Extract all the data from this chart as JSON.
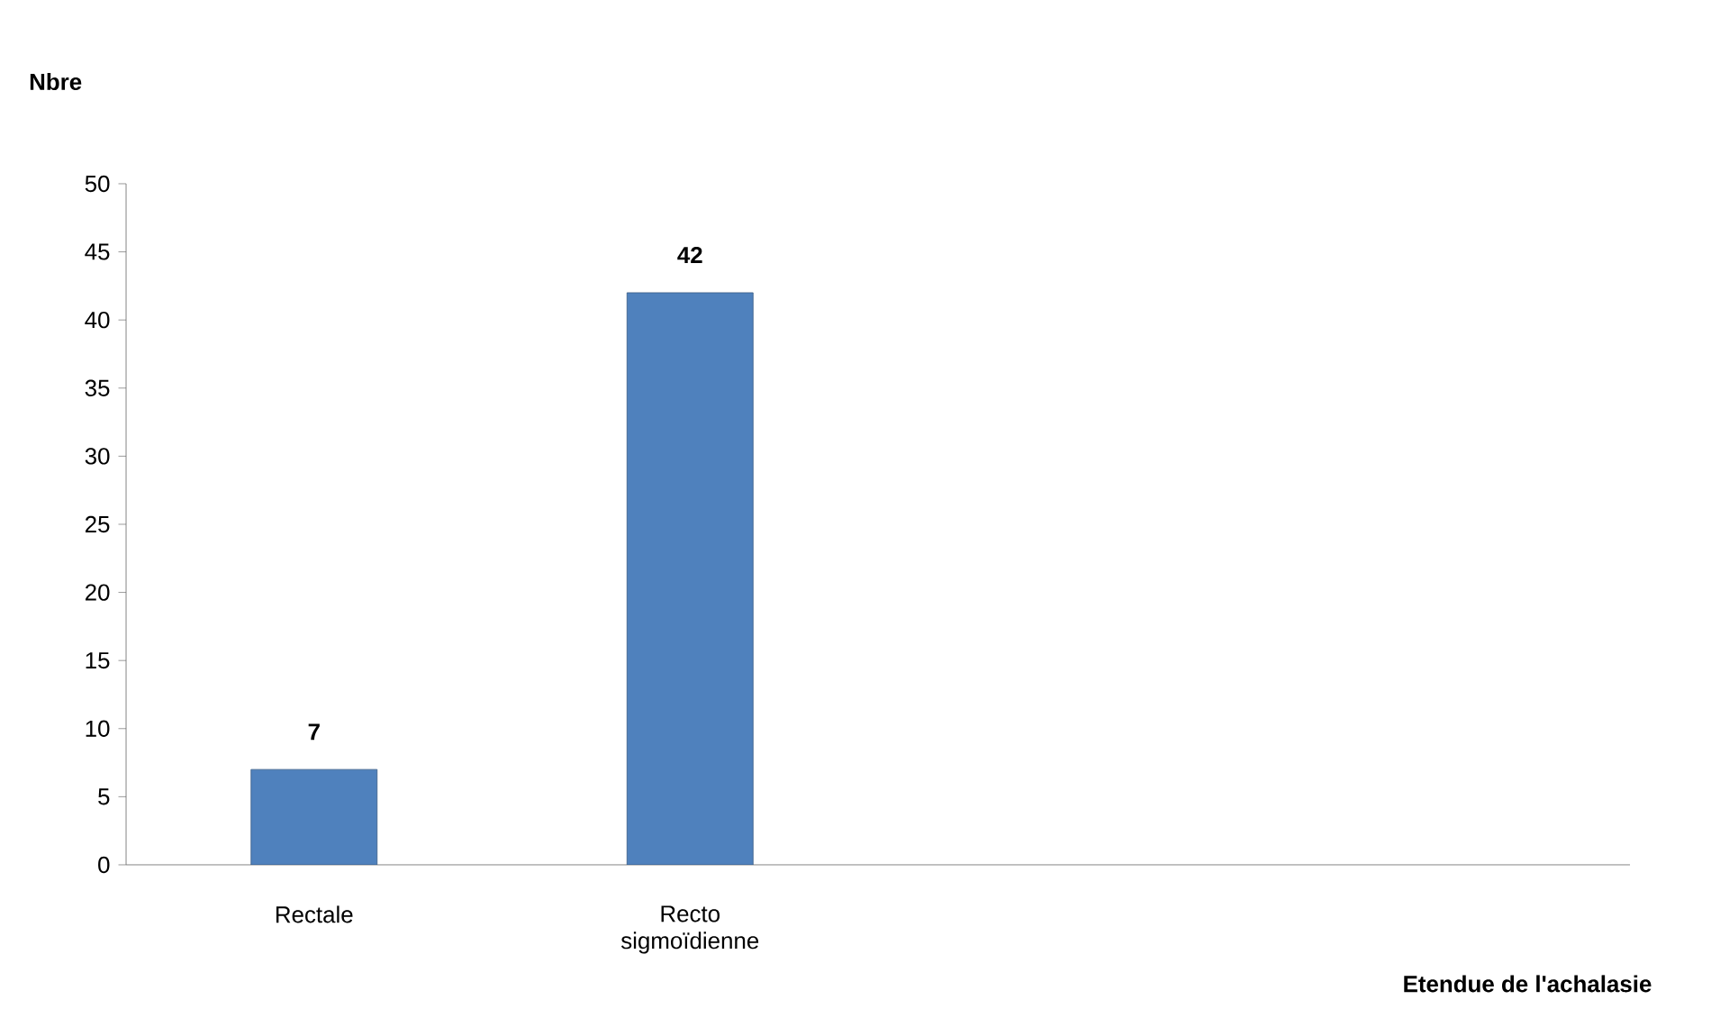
{
  "chart_data": {
    "type": "bar",
    "ylabel": "Nbre",
    "xlabel": "Etendue de l'achalasie",
    "categories": [
      "Rectale",
      "Recto sigmoïdienne",
      null,
      null
    ],
    "values": [
      7,
      42,
      null,
      null
    ],
    "value_labels": [
      "7",
      "42",
      null,
      null
    ],
    "color": "#4f81bd",
    "ylim": [
      0,
      50
    ],
    "yticks": [
      0,
      5,
      10,
      15,
      20,
      25,
      30,
      35,
      40,
      45,
      50
    ],
    "grid": false
  }
}
